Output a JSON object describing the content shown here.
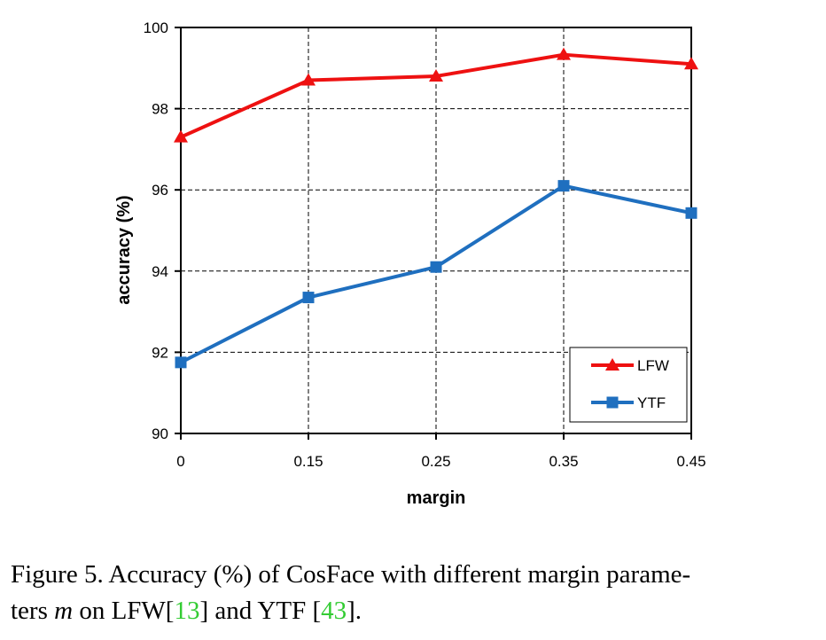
{
  "chart_data": {
    "type": "line",
    "categories": [
      "0",
      "0.15",
      "0.25",
      "0.35",
      "0.45"
    ],
    "series": [
      {
        "name": "LFW",
        "values": [
          97.3,
          98.7,
          98.8,
          99.33,
          99.1
        ],
        "color": "#ee1111",
        "marker": "triangle"
      },
      {
        "name": "YTF",
        "values": [
          91.75,
          93.35,
          94.1,
          96.1,
          95.43
        ],
        "color": "#1f6fbf",
        "marker": "square"
      }
    ],
    "xlabel": "margin",
    "ylabel": "accuracy (%)",
    "ylim": [
      90,
      100
    ],
    "yticks": [
      "90",
      "92",
      "94",
      "96",
      "98",
      "100"
    ],
    "grid": true,
    "legend_position": "bottom-right"
  },
  "caption": {
    "prefix": "Figure 5. Accuracy (%) of CosFace with different margin parame-",
    "line2_a": "ters ",
    "var": "m",
    "line2_b": " on LFW[",
    "ref1": "13",
    "line2_c": "] and YTF [",
    "ref2": "43",
    "line2_d": "]."
  }
}
